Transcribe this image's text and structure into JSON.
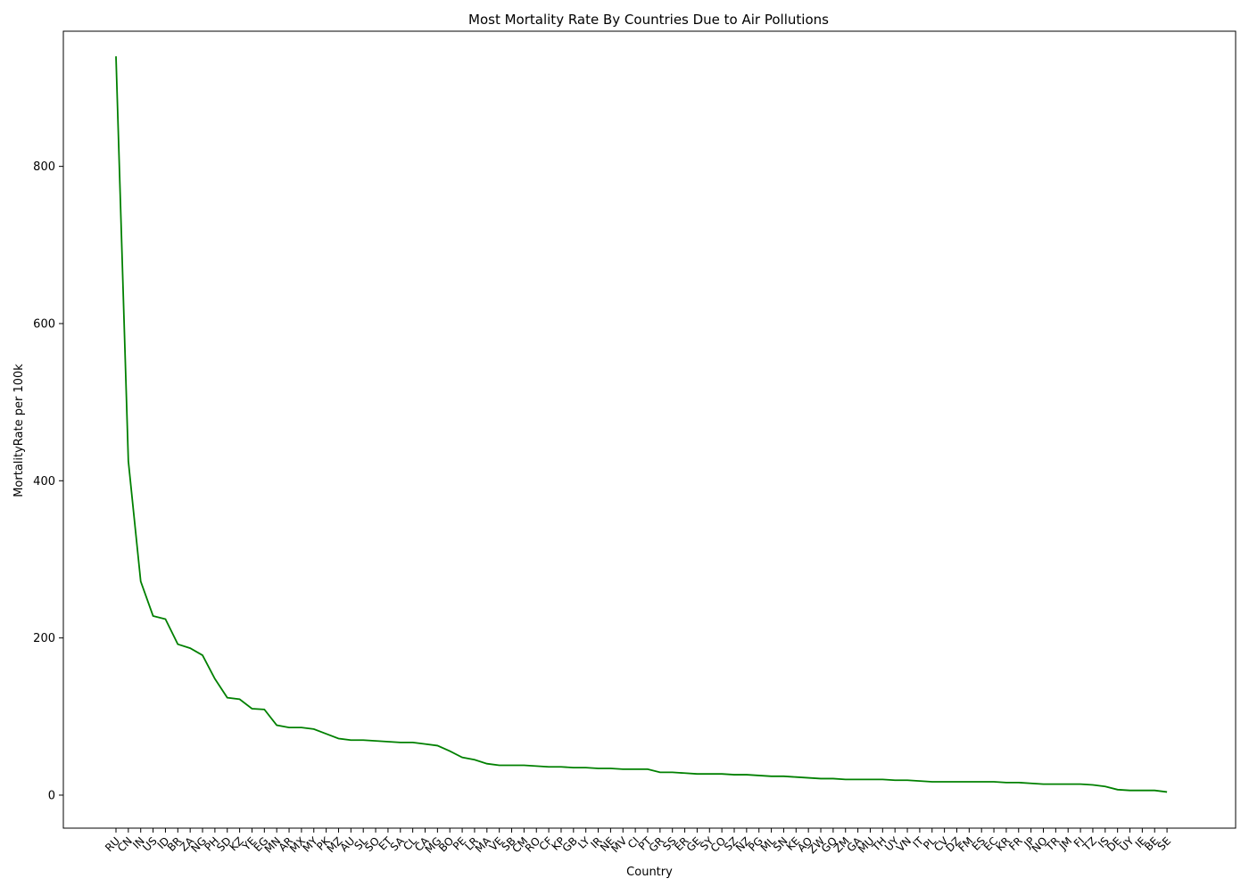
{
  "chart_data": {
    "type": "line",
    "title": "Most Mortality Rate By Countries Due to Air Pollutions",
    "xlabel": "Country",
    "ylabel": "MortalityRate per 100k",
    "ylim": [
      -42,
      972
    ],
    "yticks": [
      0,
      200,
      400,
      600,
      800
    ],
    "grid": false,
    "line_color": "#008000",
    "categories": [
      "RU",
      "CN",
      "IN",
      "US",
      "ID",
      "BR",
      "ZA",
      "NG",
      "PH",
      "SD",
      "KZ",
      "YE",
      "EG",
      "MN",
      "AR",
      "MX",
      "MY",
      "PK",
      "MZ",
      "AU",
      "SL",
      "SO",
      "ET",
      "SA",
      "CL",
      "CA",
      "MG",
      "BO",
      "PE",
      "LR",
      "MA",
      "VE",
      "SB",
      "CM",
      "RO",
      "CF",
      "KP",
      "GB",
      "LY",
      "IR",
      "NE",
      "MV",
      "CI",
      "PT",
      "GR",
      "SS",
      "ER",
      "GE",
      "SY",
      "CO",
      "SZ",
      "NZ",
      "PG",
      "ML",
      "SN",
      "KE",
      "AO",
      "ZW",
      "GQ",
      "ZM",
      "GA",
      "MU",
      "TH",
      "UY",
      "VN",
      "IT",
      "PL",
      "CV",
      "DZ",
      "FM",
      "ES",
      "EC",
      "KR",
      "FR",
      "JP",
      "NO",
      "TR",
      "JM",
      "FI",
      "TZ",
      "IS",
      "DE",
      "UY",
      "IE",
      "BE",
      "SE"
    ],
    "series": [
      {
        "values": [
          940,
          425,
          272,
          228,
          224,
          192,
          187,
          178,
          148,
          124,
          122,
          110,
          109,
          89,
          86,
          86,
          84,
          78,
          72,
          70,
          70,
          69,
          68,
          67,
          67,
          65,
          63,
          56,
          48,
          45,
          40,
          38,
          38,
          38,
          37,
          36,
          36,
          35,
          35,
          34,
          34,
          33,
          33,
          33,
          29,
          29,
          28,
          27,
          27,
          27,
          26,
          26,
          25,
          24,
          24,
          23,
          22,
          21,
          21,
          20,
          20,
          20,
          20,
          19,
          19,
          18,
          17,
          17,
          17,
          17,
          17,
          17,
          16,
          16,
          15,
          14,
          14,
          14,
          14,
          13,
          11,
          7,
          6,
          6,
          6,
          4
        ]
      }
    ]
  }
}
